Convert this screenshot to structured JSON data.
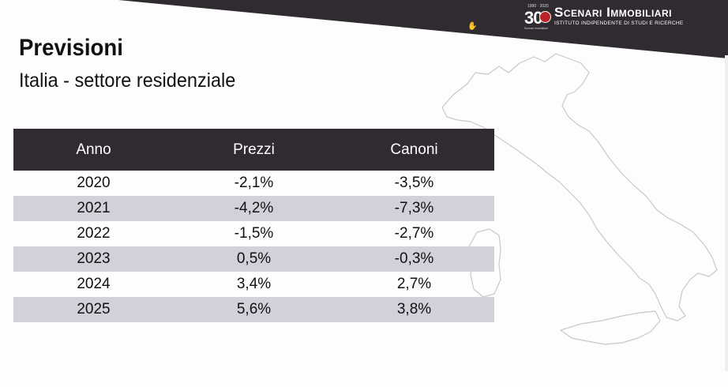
{
  "slide": {
    "title": "Previsioni",
    "subtitle": "Italia - settore residenziale"
  },
  "logo": {
    "number": "30",
    "years": "1990 · 2020",
    "name": "Scenari Immobiliari",
    "tagline": "ISTITUTO INDIPENDENTE DI STUDI E RICERCHE",
    "tiny": "Scenari Immobiliari"
  },
  "table": {
    "headers": [
      "Anno",
      "Prezzi",
      "Canoni"
    ],
    "rows": [
      {
        "anno": "2020",
        "prezzi": "-2,1%",
        "canoni": "-3,5%"
      },
      {
        "anno": "2021",
        "prezzi": "-4,2%",
        "canoni": "-7,3%"
      },
      {
        "anno": "2022",
        "prezzi": "-1,5%",
        "canoni": "-2,7%"
      },
      {
        "anno": "2023",
        "prezzi": "0,5%",
        "canoni": "-0,3%"
      },
      {
        "anno": "2024",
        "prezzi": "3,4%",
        "canoni": "2,7%"
      },
      {
        "anno": "2025",
        "prezzi": "5,6%",
        "canoni": "3,8%"
      }
    ]
  },
  "colors": {
    "banner": "#2f2b30",
    "header_row": "#2f2b30",
    "shaded_row": "#d2d0d8",
    "seal": "#b8242a"
  },
  "icons": [
    "hand-cursor-icon",
    "italy-map-outline"
  ]
}
